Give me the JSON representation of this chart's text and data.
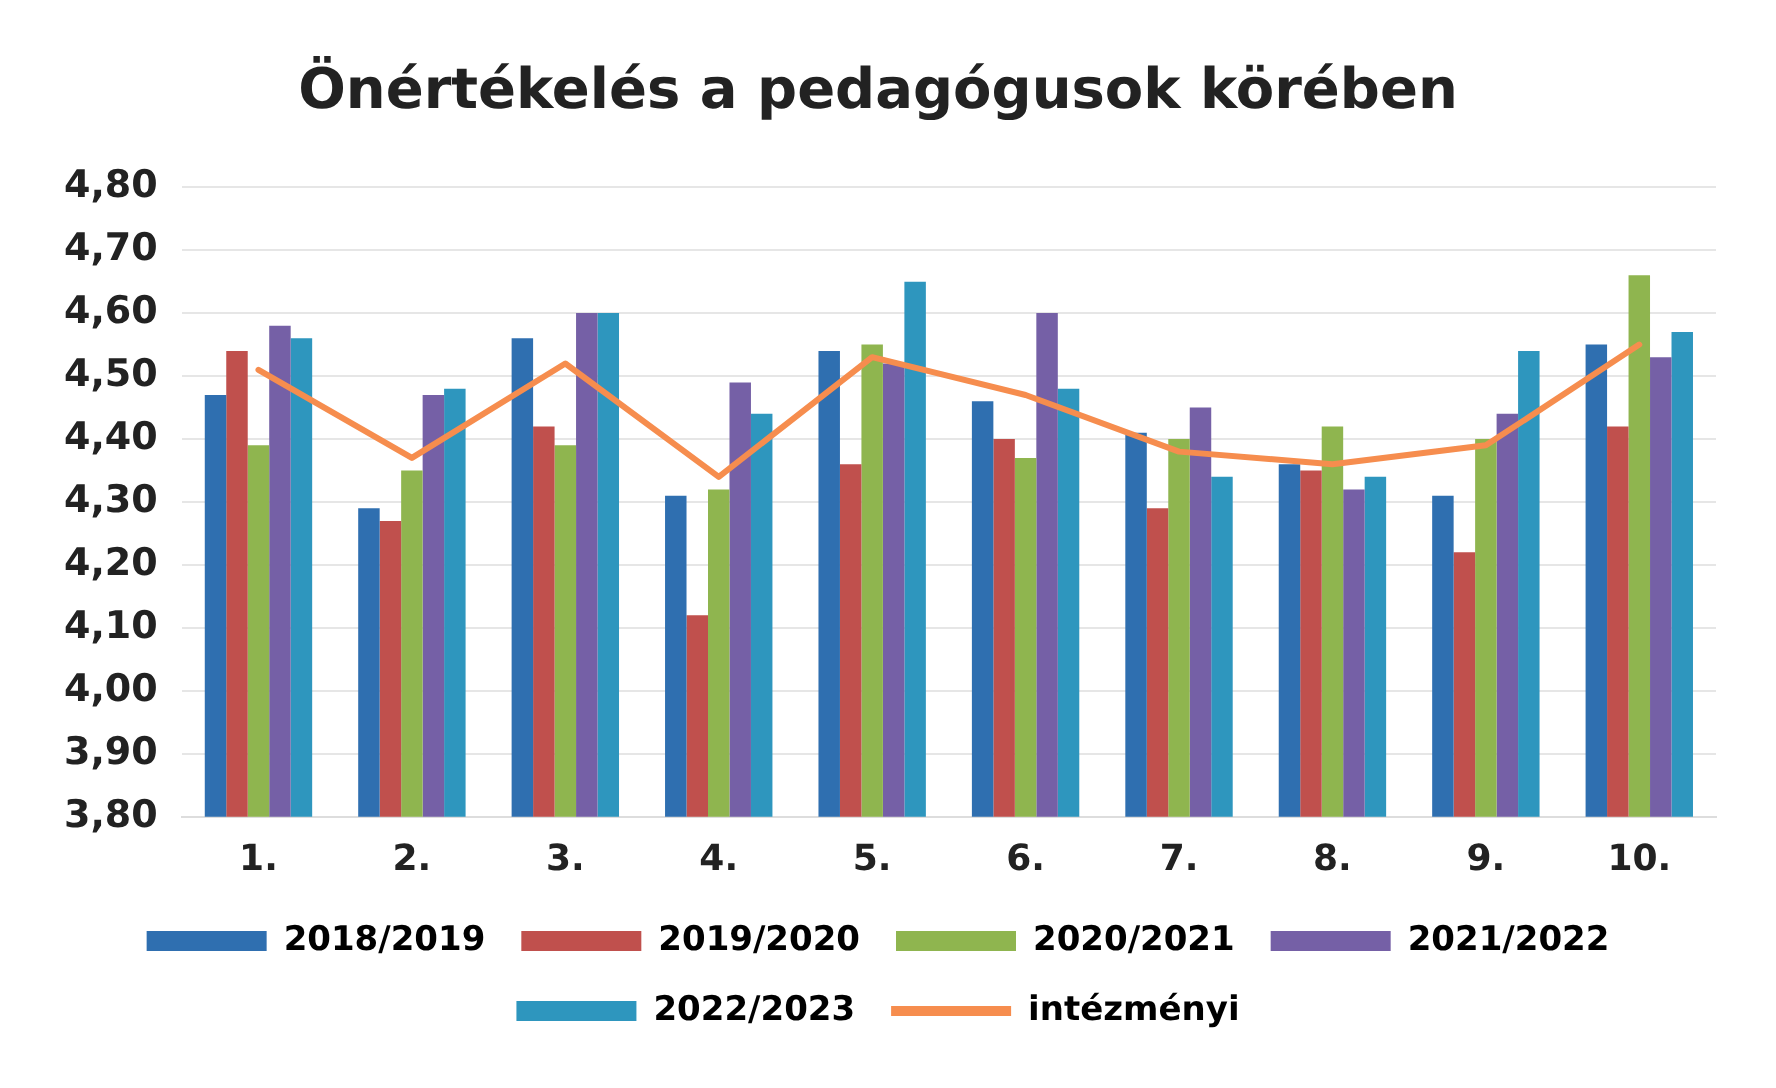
{
  "chart_data": {
    "type": "bar",
    "title": "Önértékelés a pedagógusok körében",
    "categories": [
      "1.",
      "2.",
      "3.",
      "4.",
      "5.",
      "6.",
      "7.",
      "8.",
      "9.",
      "10."
    ],
    "series": [
      {
        "name": "2018/2019",
        "color": "#2f6fb0",
        "values": [
          4.47,
          4.29,
          4.56,
          4.31,
          4.54,
          4.46,
          4.41,
          4.36,
          4.31,
          4.55
        ]
      },
      {
        "name": "2019/2020",
        "color": "#c0504d",
        "values": [
          4.54,
          4.27,
          4.42,
          4.12,
          4.36,
          4.4,
          4.29,
          4.35,
          4.22,
          4.42
        ]
      },
      {
        "name": "2020/2021",
        "color": "#8fb54f",
        "values": [
          4.39,
          4.35,
          4.39,
          4.32,
          4.55,
          4.37,
          4.4,
          4.42,
          4.4,
          4.66
        ]
      },
      {
        "name": "2021/2022",
        "color": "#7560a6",
        "values": [
          4.58,
          4.47,
          4.6,
          4.49,
          4.52,
          4.6,
          4.45,
          4.32,
          4.44,
          4.53
        ]
      },
      {
        "name": "2022/2023",
        "color": "#2e96be",
        "values": [
          4.56,
          4.48,
          4.6,
          4.44,
          4.65,
          4.48,
          4.34,
          4.34,
          4.54,
          4.57
        ]
      },
      {
        "name": "intézményi",
        "type": "line",
        "color": "#f68d4e",
        "values": [
          4.51,
          4.37,
          4.52,
          4.34,
          4.53,
          4.47,
          4.38,
          4.36,
          4.39,
          4.55
        ]
      }
    ],
    "ylim": [
      3.8,
      4.8
    ],
    "yticks": [
      {
        "value": 3.8,
        "label": "3,80"
      },
      {
        "value": 3.9,
        "label": "3,90"
      },
      {
        "value": 4.0,
        "label": "4,00"
      },
      {
        "value": 4.1,
        "label": "4,10"
      },
      {
        "value": 4.2,
        "label": "4,20"
      },
      {
        "value": 4.3,
        "label": "4,30"
      },
      {
        "value": 4.4,
        "label": "4,40"
      },
      {
        "value": 4.5,
        "label": "4,50"
      },
      {
        "value": 4.6,
        "label": "4,60"
      },
      {
        "value": 4.7,
        "label": "4,70"
      },
      {
        "value": 4.8,
        "label": "4,80"
      }
    ],
    "grid": "y",
    "legend": "bottom",
    "marker": "none"
  }
}
